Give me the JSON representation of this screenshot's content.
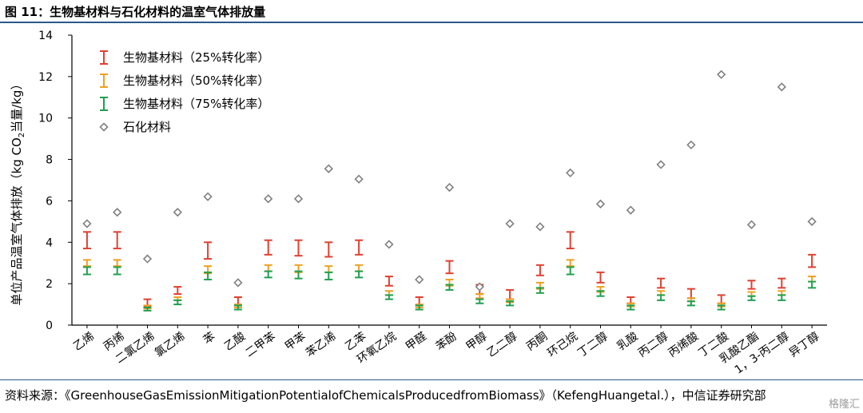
{
  "figure_title": "图 11：生物基材料与石化材料的温室气体排放量",
  "source_text": "资料来源：《GreenhouseGasEmissionMitigationPotentialofChemicalsProducedfromBiomass》（KefengHuangetal.），中信证券研究部",
  "watermark": "格隆汇",
  "chart_data": {
    "type": "scatter",
    "ylabel_prefix": "单位产品温室气体排放（kg CO",
    "ylabel_sub": "2",
    "ylabel_suffix": "当量/kg）",
    "xlabel": "",
    "ylim": [
      0,
      14
    ],
    "yticks": [
      0,
      2,
      4,
      6,
      8,
      10,
      12,
      14
    ],
    "grid": false,
    "legend_position": "top-left",
    "categories": [
      "乙烯",
      "丙烯",
      "二氯乙烯",
      "氯乙烯",
      "苯",
      "乙酸",
      "二甲苯",
      "甲苯",
      "苯乙烯",
      "乙苯",
      "环氧乙烷",
      "甲醛",
      "苯酚",
      "甲醇",
      "乙二醇",
      "丙酮",
      "环己烷",
      "丁二醇",
      "乳酸",
      "丙二醇",
      "丙烯酸",
      "丁二酸",
      "乳酸乙酯",
      "1，3-丙二醇",
      "异丁醇"
    ],
    "series": [
      {
        "name": "生物基材料（25%转化率）",
        "color": "#e04030",
        "kind": "errorbar",
        "low": [
          3.7,
          3.7,
          0.9,
          1.5,
          3.2,
          0.95,
          3.4,
          3.35,
          3.3,
          3.4,
          1.9,
          0.95,
          2.5,
          1.5,
          1.25,
          2.4,
          3.7,
          2.05,
          1.05,
          1.8,
          1.3,
          1.05,
          1.75,
          1.8,
          2.8
        ],
        "high": [
          4.5,
          4.5,
          1.25,
          1.85,
          4.0,
          1.35,
          4.1,
          4.1,
          4.0,
          4.1,
          2.35,
          1.35,
          3.1,
          1.95,
          1.7,
          2.9,
          4.5,
          2.55,
          1.35,
          2.25,
          1.75,
          1.45,
          2.15,
          2.25,
          3.4
        ]
      },
      {
        "name": "生物基材料（50%转化率）",
        "color": "#f0a020",
        "kind": "errorbar",
        "low": [
          2.85,
          2.85,
          0.8,
          1.2,
          2.5,
          0.85,
          2.6,
          2.55,
          2.55,
          2.6,
          1.45,
          0.85,
          1.9,
          1.3,
          1.1,
          1.75,
          2.85,
          1.6,
          0.9,
          1.45,
          1.15,
          0.9,
          1.4,
          1.45,
          2.1
        ],
        "high": [
          3.15,
          3.15,
          0.95,
          1.35,
          2.85,
          1.0,
          2.9,
          2.9,
          2.85,
          2.9,
          1.65,
          1.0,
          2.2,
          1.5,
          1.25,
          2.05,
          3.15,
          1.85,
          1.05,
          1.65,
          1.3,
          1.05,
          1.6,
          1.65,
          2.35
        ]
      },
      {
        "name": "生物基材料（75%转化率）",
        "color": "#20a050",
        "kind": "errorbar",
        "low": [
          2.45,
          2.45,
          0.7,
          1.0,
          2.2,
          0.75,
          2.3,
          2.25,
          2.2,
          2.3,
          1.25,
          0.75,
          1.7,
          1.05,
          0.95,
          1.55,
          2.45,
          1.4,
          0.75,
          1.2,
          0.95,
          0.75,
          1.2,
          1.2,
          1.8
        ],
        "high": [
          2.8,
          2.8,
          0.85,
          1.2,
          2.55,
          0.95,
          2.6,
          2.6,
          2.55,
          2.6,
          1.45,
          0.95,
          1.95,
          1.25,
          1.15,
          1.8,
          2.8,
          1.65,
          0.95,
          1.45,
          1.15,
          0.95,
          1.4,
          1.45,
          2.1
        ]
      },
      {
        "name": "石化材料",
        "color": "#808080",
        "kind": "marker",
        "values": [
          4.9,
          5.45,
          3.2,
          5.45,
          6.2,
          2.05,
          6.1,
          6.1,
          7.55,
          7.05,
          3.9,
          2.2,
          6.65,
          1.85,
          4.9,
          4.75,
          7.35,
          5.85,
          5.55,
          7.75,
          8.7,
          12.1,
          4.85,
          11.5,
          5.0
        ]
      }
    ]
  }
}
